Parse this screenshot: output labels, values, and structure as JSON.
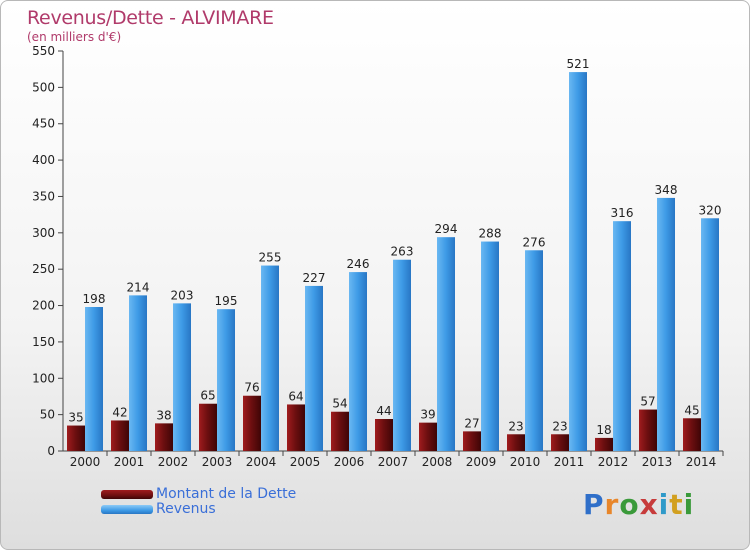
{
  "header": {
    "title": "Revenus/Dette - ALVIMARE",
    "subtitle": "(en milliers d'€)"
  },
  "colors": {
    "debt": "#6e0f10",
    "revenue": "#3d9ae6",
    "title": "#b03a6a",
    "legend_text": "#3a6fd8"
  },
  "legend": {
    "debt_label": "Montant de la Dette",
    "revenue_label": "Revenus"
  },
  "logo": {
    "text": "Proxiti"
  },
  "chart_data": {
    "type": "bar",
    "title": "Revenus/Dette - ALVIMARE",
    "subtitle": "(en milliers d'€)",
    "categories": [
      "2000",
      "2001",
      "2002",
      "2003",
      "2004",
      "2005",
      "2006",
      "2007",
      "2008",
      "2009",
      "2010",
      "2011",
      "2012",
      "2013",
      "2014"
    ],
    "series": [
      {
        "name": "Montant de la Dette",
        "values": [
          35,
          42,
          38,
          65,
          76,
          64,
          54,
          44,
          39,
          27,
          23,
          23,
          18,
          57,
          45
        ]
      },
      {
        "name": "Revenus",
        "values": [
          198,
          214,
          203,
          195,
          255,
          227,
          246,
          263,
          294,
          288,
          276,
          521,
          316,
          348,
          320
        ]
      }
    ],
    "ylim": [
      0,
      550
    ],
    "yticks": [
      0,
      50,
      100,
      150,
      200,
      250,
      300,
      350,
      400,
      450,
      500,
      550
    ],
    "grid": false,
    "legend_position": "bottom-left"
  }
}
